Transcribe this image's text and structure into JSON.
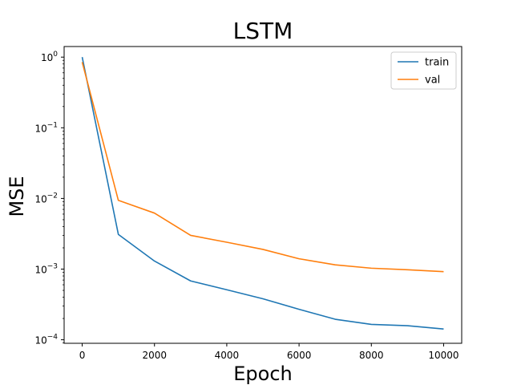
{
  "chart_data": {
    "type": "line",
    "title": "LSTM",
    "xlabel": "Epoch",
    "ylabel": "MSE",
    "yscale": "log",
    "xlim": [
      -500,
      10500
    ],
    "ylim_exp": [
      -4.05,
      0.15
    ],
    "x_ticks": [
      {
        "value": 0,
        "label": "0"
      },
      {
        "value": 2000,
        "label": "2000"
      },
      {
        "value": 4000,
        "label": "4000"
      },
      {
        "value": 6000,
        "label": "6000"
      },
      {
        "value": 8000,
        "label": "8000"
      },
      {
        "value": 10000,
        "label": "10000"
      }
    ],
    "y_ticks": [
      {
        "exp": 0,
        "base": "10",
        "sup": "0"
      },
      {
        "exp": -1,
        "base": "10",
        "sup": "−1"
      },
      {
        "exp": -2,
        "base": "10",
        "sup": "−2"
      },
      {
        "exp": -3,
        "base": "10",
        "sup": "−3"
      },
      {
        "exp": -4,
        "base": "10",
        "sup": "−4"
      }
    ],
    "grid": false,
    "legend": "top-right",
    "x": [
      0,
      1000,
      2000,
      3000,
      4000,
      5000,
      6000,
      7000,
      8000,
      9000,
      10000
    ],
    "series": [
      {
        "name": "train",
        "color": "#1f77b4",
        "values": [
          1.0,
          0.0031,
          0.0013,
          0.00068,
          0.00051,
          0.00038,
          0.00027,
          0.000195,
          0.000165,
          0.000158,
          0.000142
        ]
      },
      {
        "name": "val",
        "color": "#ff7f0e",
        "values": [
          0.85,
          0.0094,
          0.0062,
          0.003,
          0.0024,
          0.0019,
          0.0014,
          0.00115,
          0.00103,
          0.00098,
          0.00092
        ]
      }
    ]
  }
}
